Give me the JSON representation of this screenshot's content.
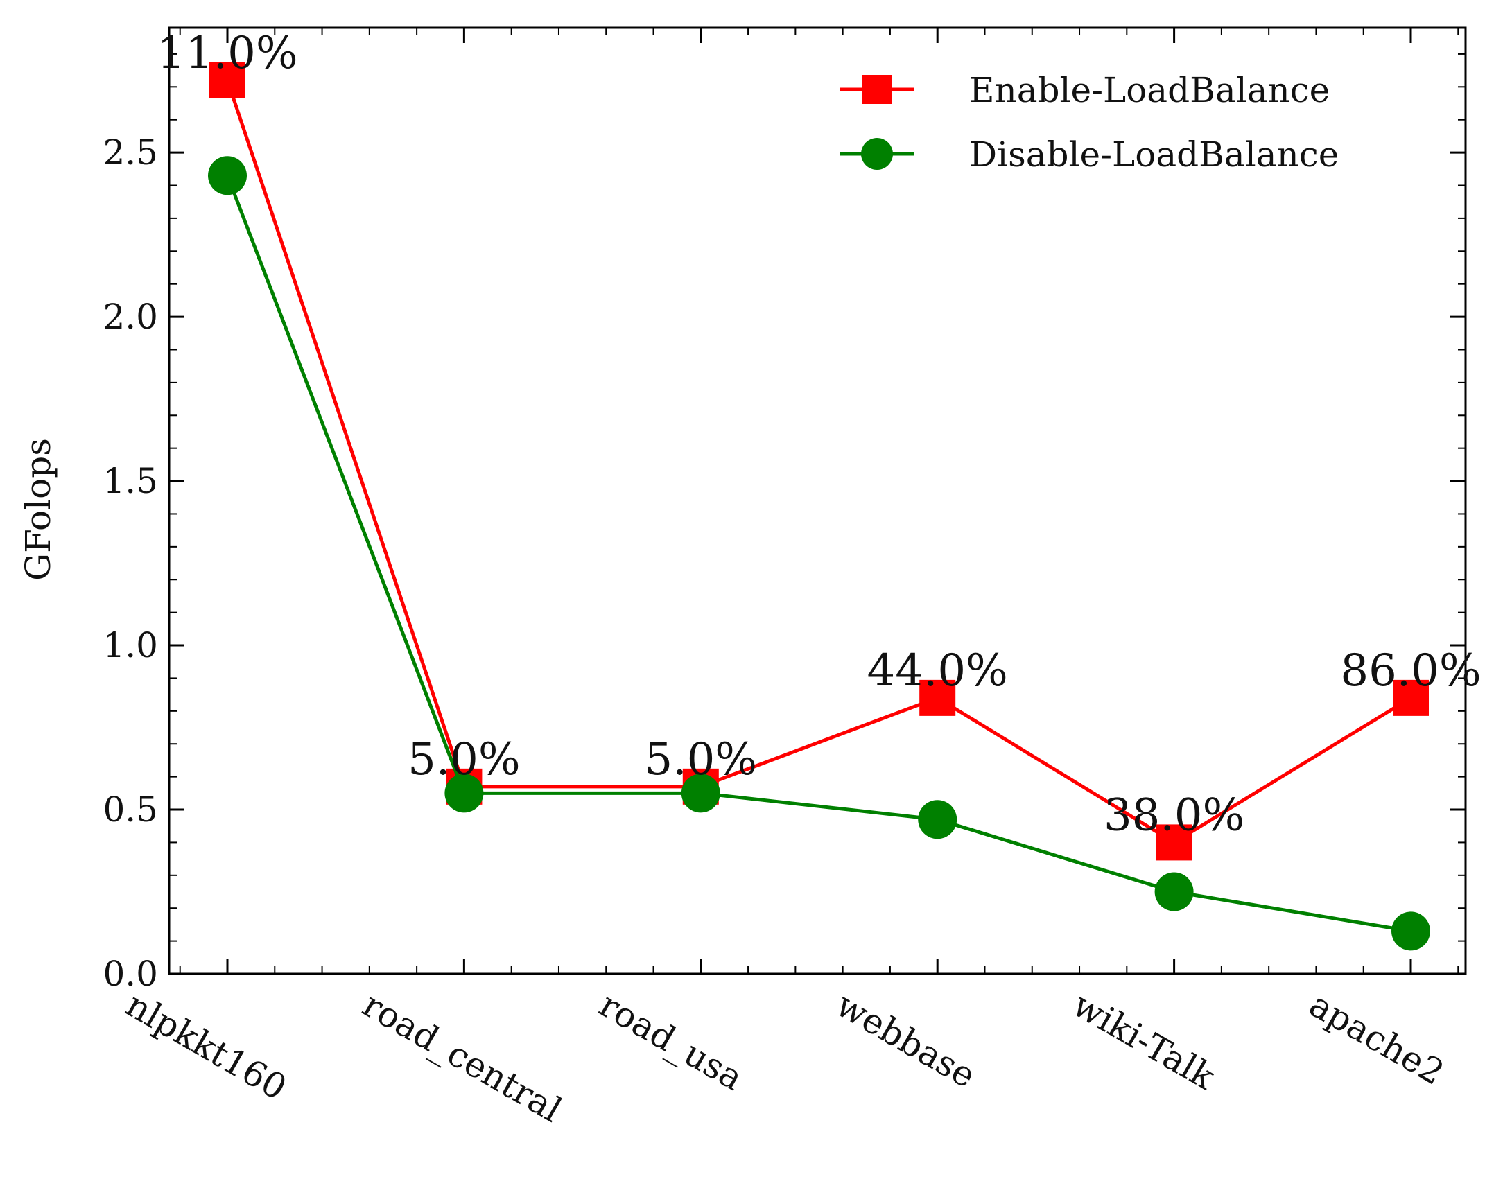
{
  "chart_data": {
    "type": "line",
    "title": "",
    "xlabel": "",
    "ylabel": "GFolops",
    "categories": [
      "nlpkkt160",
      "road_central",
      "road_usa",
      "webbase",
      "wiki-Talk",
      "apache2"
    ],
    "ylim": [
      0.0,
      2.88
    ],
    "yticks": [
      0.0,
      0.5,
      1.0,
      1.5,
      2.0,
      2.5
    ],
    "ytick_labels": [
      "0.0",
      "0.5",
      "1.0",
      "1.5",
      "2.0",
      "2.5"
    ],
    "grid": false,
    "legend_position": "top-right",
    "series": [
      {
        "name": "Enable-LoadBalance",
        "color": "#ff0000",
        "marker": "square",
        "values": [
          2.72,
          0.57,
          0.57,
          0.84,
          0.4,
          0.84
        ]
      },
      {
        "name": "Disable-LoadBalance",
        "color": "#008000",
        "marker": "circle",
        "values": [
          2.43,
          0.55,
          0.55,
          0.47,
          0.25,
          0.13
        ]
      }
    ],
    "annotations": [
      "11.0%",
      "5.0%",
      "5.0%",
      "44.0%",
      "38.0%",
      "86.0%"
    ]
  }
}
